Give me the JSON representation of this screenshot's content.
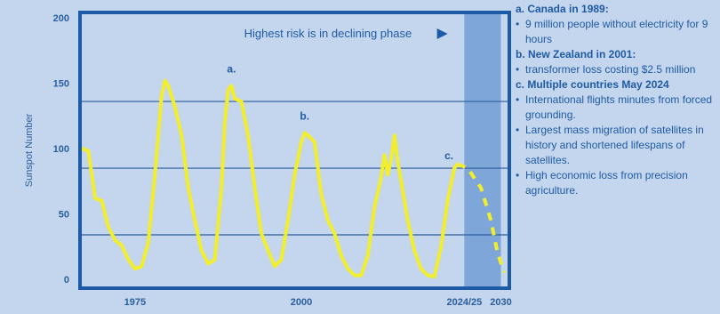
{
  "chart_data": {
    "type": "line",
    "title": "",
    "xlabel": "",
    "ylabel": "Sunspot Number",
    "xlim": [
      1967,
      2031
    ],
    "ylim": [
      0,
      200
    ],
    "y_ticks": [
      0,
      50,
      100,
      150,
      200
    ],
    "x_tick_labels": [
      {
        "x": 1975,
        "label": "1975"
      },
      {
        "x": 2000,
        "label": "2000"
      },
      {
        "x": 2024.5,
        "label": "2024/25"
      },
      {
        "x": 2030,
        "label": "2030"
      }
    ],
    "grid_lines_y": [
      34,
      85,
      136
    ],
    "highlight_band": {
      "x_start": 2024.5,
      "x_end": 2030
    },
    "series": [
      {
        "name": "",
        "color": "#f2ee2c",
        "points": [
          [
            1967,
            100
          ],
          [
            1968,
            98
          ],
          [
            1969,
            62
          ],
          [
            1970,
            60
          ],
          [
            1971,
            40
          ],
          [
            1972,
            30
          ],
          [
            1973,
            26
          ],
          [
            1974,
            15
          ],
          [
            1975,
            8
          ],
          [
            1976,
            10
          ],
          [
            1977,
            28
          ],
          [
            1978,
            80
          ],
          [
            1979,
            140
          ],
          [
            1979.5,
            152
          ],
          [
            1980,
            148
          ],
          [
            1981,
            132
          ],
          [
            1982,
            110
          ],
          [
            1983,
            70
          ],
          [
            1984,
            45
          ],
          [
            1985,
            22
          ],
          [
            1986,
            12
          ],
          [
            1987,
            15
          ],
          [
            1988,
            70
          ],
          [
            1988.5,
            120
          ],
          [
            1989,
            145
          ],
          [
            1989.5,
            148
          ],
          [
            1990,
            138
          ],
          [
            1991,
            136
          ],
          [
            1992,
            110
          ],
          [
            1993,
            70
          ],
          [
            1994,
            35
          ],
          [
            1995,
            22
          ],
          [
            1996,
            10
          ],
          [
            1997,
            15
          ],
          [
            1998,
            45
          ],
          [
            1999,
            80
          ],
          [
            2000,
            105
          ],
          [
            2000.5,
            112
          ],
          [
            2001,
            110
          ],
          [
            2002,
            105
          ],
          [
            2003,
            65
          ],
          [
            2004,
            45
          ],
          [
            2005,
            35
          ],
          [
            2006,
            18
          ],
          [
            2007,
            8
          ],
          [
            2008,
            3
          ],
          [
            2009,
            3
          ],
          [
            2010,
            18
          ],
          [
            2011,
            55
          ],
          [
            2012,
            78
          ],
          [
            2012.5,
            95
          ],
          [
            2013,
            80
          ],
          [
            2013.5,
            92
          ],
          [
            2014,
            110
          ],
          [
            2014.5,
            90
          ],
          [
            2015,
            75
          ],
          [
            2016,
            45
          ],
          [
            2017,
            22
          ],
          [
            2018,
            8
          ],
          [
            2019,
            3
          ],
          [
            2020,
            2
          ],
          [
            2021,
            25
          ],
          [
            2022,
            60
          ],
          [
            2023,
            85
          ],
          [
            2023.5,
            88
          ]
        ]
      },
      {
        "name": "",
        "color": "#f2ee2c",
        "dashed": true,
        "points": [
          [
            2023.5,
            88
          ],
          [
            2025,
            85
          ],
          [
            2027,
            70
          ],
          [
            2028.5,
            45
          ],
          [
            2029.5,
            20
          ],
          [
            2030.5,
            5
          ]
        ]
      }
    ],
    "annotations": [
      {
        "text": "Highest risk is in declining phase",
        "x": 2004,
        "y": 185,
        "arrow_to_x": 2022
      },
      {
        "text": "a.",
        "x": 1989.5,
        "y": 158
      },
      {
        "text": "b.",
        "x": 2000.5,
        "y": 122
      },
      {
        "text": "c.",
        "x": 2022.2,
        "y": 92
      }
    ]
  },
  "notes": [
    {
      "head": "a. Canada in 1989:",
      "bullets": [
        "9 million people without electricity for 9 hours"
      ]
    },
    {
      "head": "b. New Zealand in 2001:",
      "bullets": [
        "transformer loss costing $2.5 million"
      ]
    },
    {
      "head": "c. Multiple countries May 2024",
      "bullets": [
        "International flights minutes from forced grounding.",
        "Largest mass migration of satellites in history and shortened lifespans of satellites.",
        "High economic loss from precision agriculture."
      ]
    }
  ]
}
